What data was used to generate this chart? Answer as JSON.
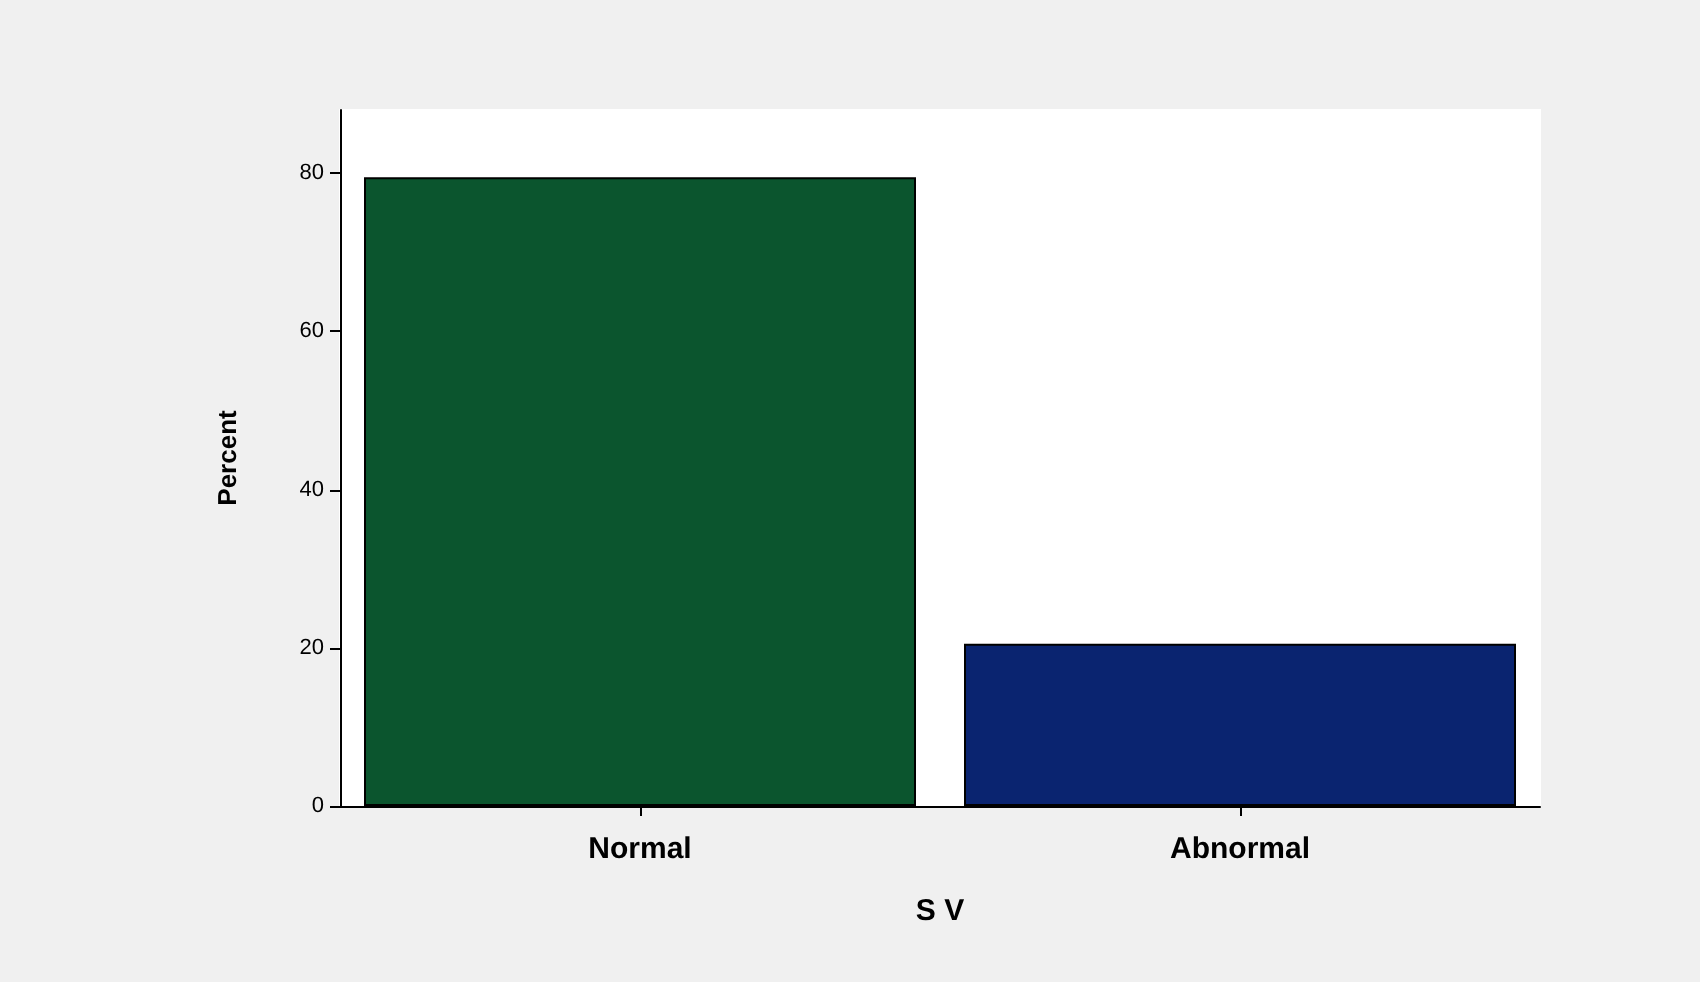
{
  "chart_data": {
    "type": "bar",
    "xlabel": "S V",
    "ylabel": "Percent",
    "categories": [
      "Normal",
      "Abnormal"
    ],
    "values": [
      79.5,
      20.5
    ],
    "colors": [
      "#0b552e",
      "#0a2470"
    ],
    "ylim": [
      0,
      88
    ],
    "yticks": [
      0,
      20,
      40,
      60,
      80
    ],
    "grid": false
  }
}
